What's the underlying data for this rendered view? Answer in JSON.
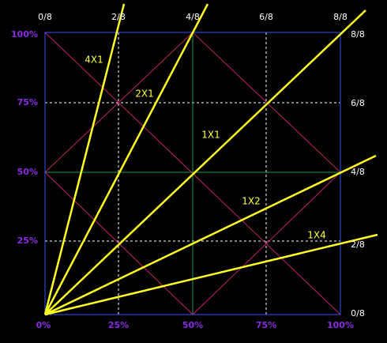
{
  "top_labels": [
    "0/8",
    "2/8",
    "4/8",
    "6/8",
    "8/8"
  ],
  "right_labels": [
    "8/8",
    "6/8",
    "4/8",
    "2/8",
    "0/8"
  ],
  "left_labels": [
    "100%",
    "75%",
    "50%",
    "25%"
  ],
  "bottom_labels": [
    "0%",
    "25%",
    "50%",
    "75%",
    "100%"
  ],
  "fan_labels": [
    "4X1",
    "2X1",
    "1X1",
    "1X2",
    "1X4"
  ]
}
